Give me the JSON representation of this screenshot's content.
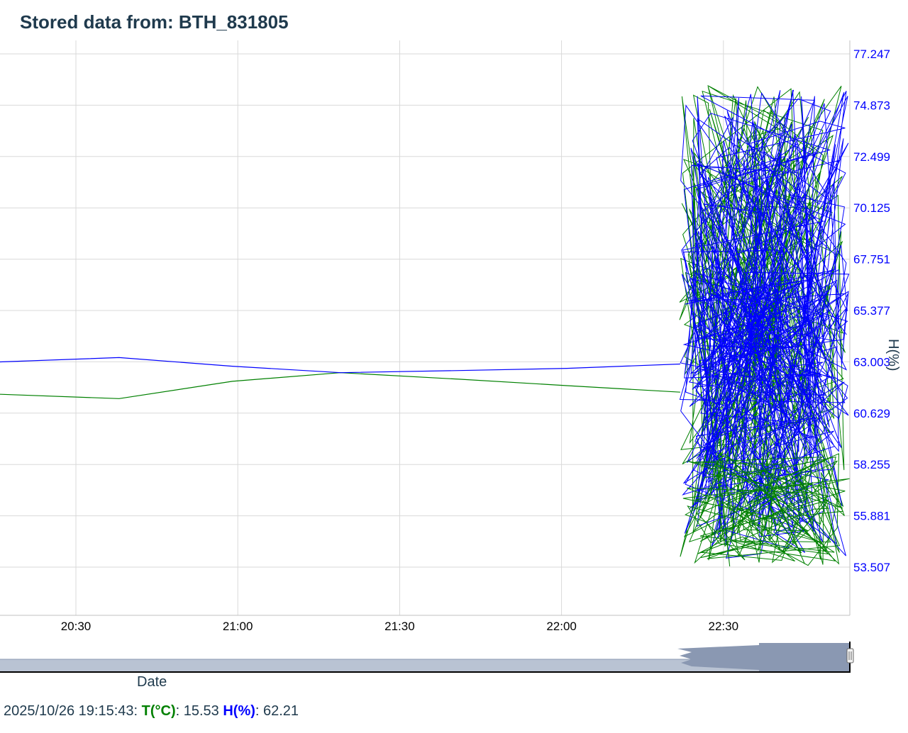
{
  "header": {
    "title": "Stored data from: BTH_831805"
  },
  "chart_data": {
    "type": "line",
    "xlabel": "Date",
    "ylabel": "H(%)",
    "x_tick_labels": [
      "20:30",
      "21:00",
      "21:30",
      "22:00",
      "22:30"
    ],
    "y_tick_labels": [
      "77.247",
      "74.873",
      "72.499",
      "70.125",
      "67.751",
      "65.377",
      "63.003",
      "60.629",
      "58.255",
      "55.881",
      "53.507"
    ],
    "ylim": [
      51.133,
      77.247
    ],
    "grid": true,
    "colors": {
      "temperature": "#008000",
      "humidity": "#0000ff",
      "axis_labels": "#0000ff",
      "navigator": "#8a98b2"
    },
    "series": [
      {
        "name": "T(°C)",
        "color": "#008000",
        "x": [
          "20:16",
          "20:38",
          "20:59",
          "21:19",
          "21:41",
          "22:01",
          "22:22"
        ],
        "values": [
          61.5,
          61.3,
          62.1,
          62.5,
          62.2,
          61.9,
          61.6
        ]
      },
      {
        "name": "H(%)",
        "color": "#0000ff",
        "x": [
          "20:16",
          "20:38",
          "20:59",
          "21:19",
          "21:41",
          "22:01",
          "22:22"
        ],
        "values": [
          63.0,
          63.2,
          62.8,
          62.5,
          62.6,
          62.7,
          62.9
        ]
      }
    ]
  },
  "navigator": {
    "x_axis_title": "Date"
  },
  "status": {
    "timestamp": "2025/10/26 19:15:43:",
    "t_label": "T(°C)",
    "t_value": ": 15.53",
    "h_label": "H(%)",
    "h_value": ": 62.21"
  }
}
